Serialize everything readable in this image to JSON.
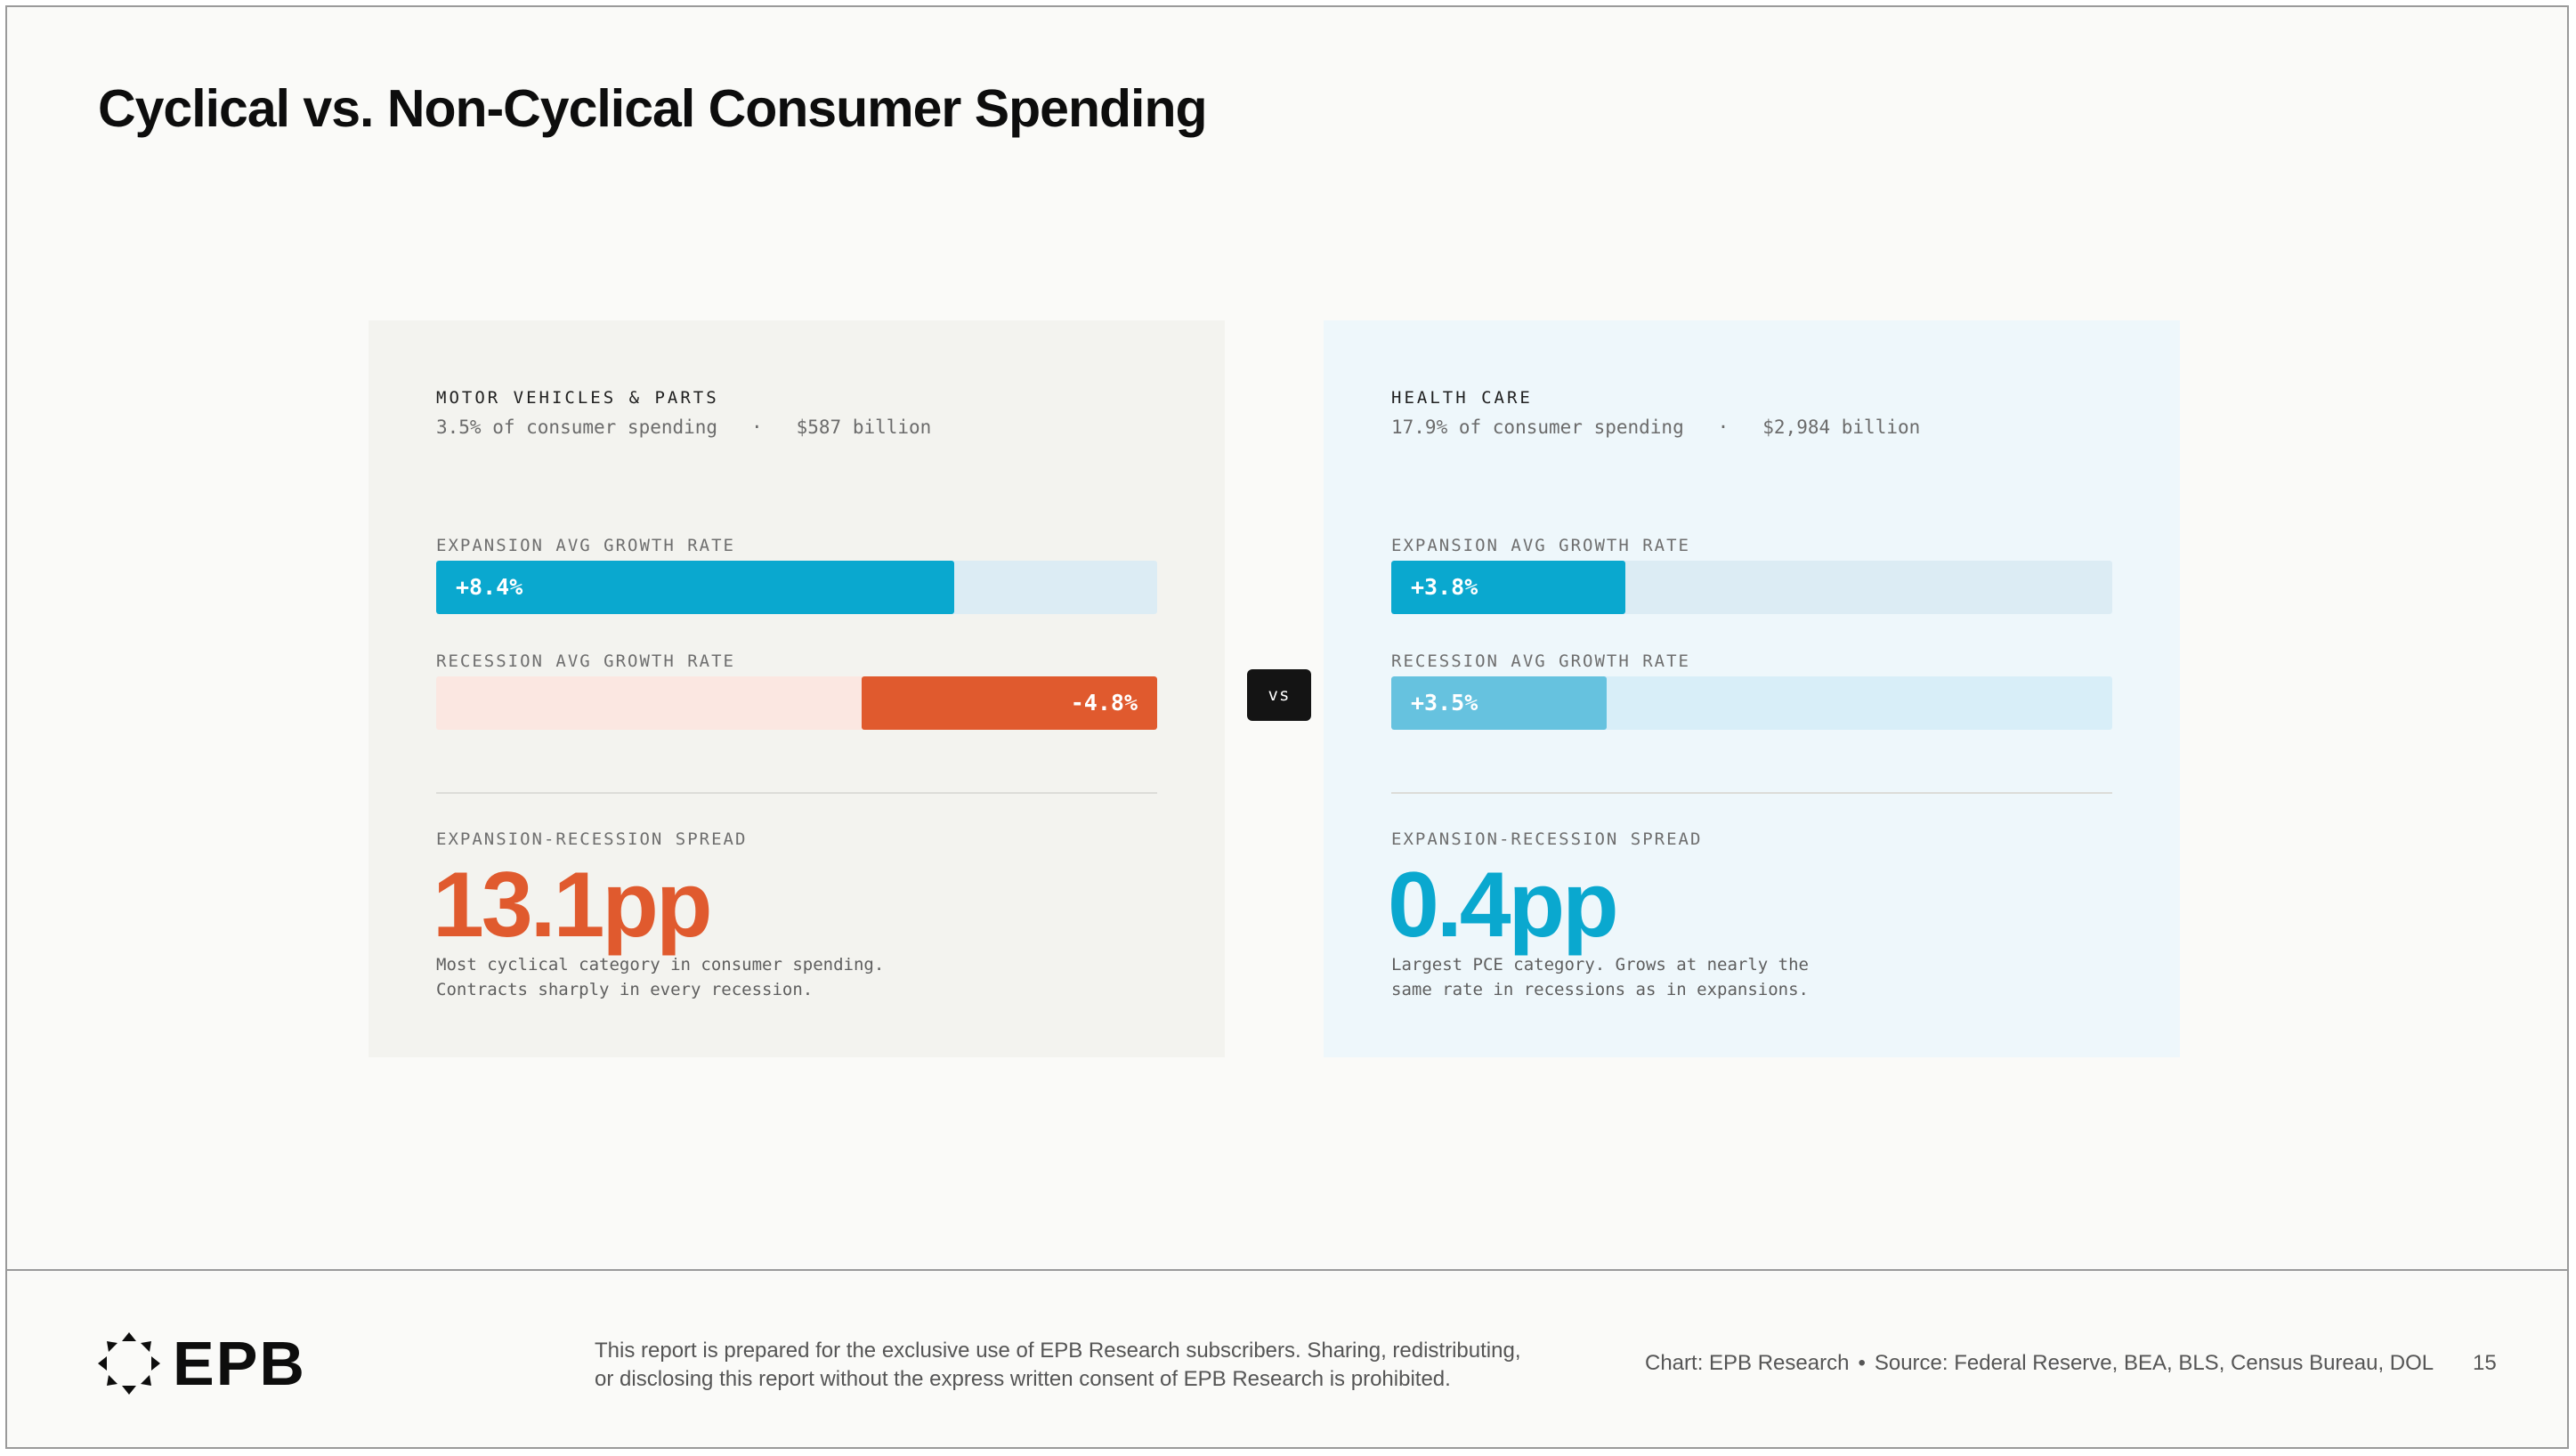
{
  "title": "Cyclical vs. Non-Cyclical Consumer Spending",
  "chart_data": {
    "type": "bar",
    "title": "Cyclical vs. Non-Cyclical Consumer Spending",
    "bar_scale_max_abs": 11.7,
    "panels": [
      {
        "category": "MOTOR VEHICLES & PARTS",
        "share_text": "3.5% of consumer spending",
        "separator": "·",
        "size_text": "$587 billion",
        "expansion_label": "EXPANSION AVG GROWTH RATE",
        "expansion_value": 8.4,
        "expansion_text": "+8.4%",
        "recession_label": "RECESSION AVG GROWTH RATE",
        "recession_value": -4.8,
        "recession_text": "-4.8%",
        "spread_label": "EXPANSION-RECESSION SPREAD",
        "spread_value": 13.1,
        "spread_text": "13.1pp",
        "description_line1": "Most cyclical category in consumer spending.",
        "description_line2": "Contracts sharply in every recession."
      },
      {
        "category": "HEALTH CARE",
        "share_text": "17.9% of consumer spending",
        "separator": "·",
        "size_text": "$2,984 billion",
        "expansion_label": "EXPANSION AVG GROWTH RATE",
        "expansion_value": 3.8,
        "expansion_text": "+3.8%",
        "recession_label": "RECESSION AVG GROWTH RATE",
        "recession_value": 3.5,
        "recession_text": "+3.5%",
        "spread_label": "EXPANSION-RECESSION SPREAD",
        "spread_value": 0.4,
        "spread_text": "0.4pp",
        "description_line1": "Largest PCE category. Grows at nearly the",
        "description_line2": "same rate in recessions as in expansions."
      }
    ]
  },
  "vs_label": "vs",
  "colors": {
    "expansion_fill": "#0aa8cf",
    "expansion_track": "#dcecf4",
    "recession_neg_fill": "#e05a2e",
    "recession_neg_track": "#fbe7e1",
    "recession_pos_fill": "#66c2df",
    "recession_pos_track": "#d8eef8",
    "spread_cyclical": "#e05a2e",
    "spread_noncyclical": "#0aa8cf"
  },
  "footer": {
    "logo_text": "EPB",
    "disclaimer_line1": "This report is prepared for the exclusive use of EPB Research subscribers. Sharing, redistributing,",
    "disclaimer_line2": "or disclosing this report without the express written consent of EPB Research is prohibited.",
    "chart_credit": "Chart: EPB Research",
    "source_sep": "•",
    "source": "Source: Federal Reserve, BEA, BLS, Census Bureau, DOL",
    "page_number": "15"
  }
}
